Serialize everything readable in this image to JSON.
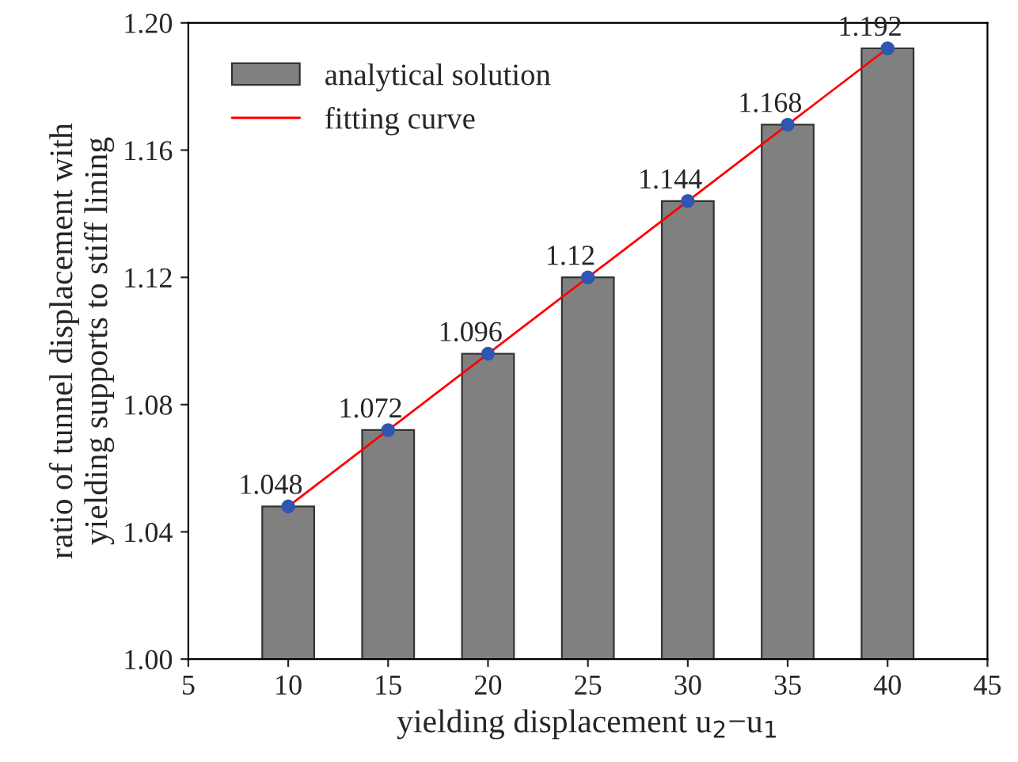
{
  "chart_data": {
    "type": "bar",
    "xlabel": "yielding displacement u$_{2}$−u$_{1}$",
    "ylabel": "ratio of tunnel displacement with\nyielding supports to stiff lining",
    "x": [
      10,
      15,
      20,
      25,
      30,
      35,
      40
    ],
    "series": [
      {
        "name": "analytical solution",
        "color": "#808080",
        "values": [
          1.048,
          1.072,
          1.096,
          1.12,
          1.144,
          1.168,
          1.192
        ],
        "value_labels": [
          "1.048",
          "1.072",
          "1.096",
          "1.12",
          "1.144",
          "1.168",
          "1.192"
        ]
      },
      {
        "name": "fitting curve",
        "type": "line",
        "color": "#ff0000",
        "marker": "none",
        "values": [
          1.048,
          1.072,
          1.096,
          1.12,
          1.144,
          1.168,
          1.192
        ]
      },
      {
        "type": "scatter",
        "color": "#2f56b0",
        "marker": "circle",
        "values": [
          1.048,
          1.072,
          1.096,
          1.12,
          1.144,
          1.168,
          1.192
        ]
      }
    ],
    "xlim": [
      5,
      45
    ],
    "xticks": [
      5,
      10,
      15,
      20,
      25,
      30,
      35,
      40,
      45
    ],
    "ylim": [
      1.0,
      1.2
    ],
    "yticks": [
      {
        "value": 1.0,
        "label": "1.00"
      },
      {
        "value": 1.04,
        "label": "1.04"
      },
      {
        "value": 1.08,
        "label": "1.08"
      },
      {
        "value": 1.12,
        "label": "1.12"
      },
      {
        "value": 1.16,
        "label": "1.16"
      },
      {
        "value": 1.2,
        "label": "1.20"
      }
    ],
    "grid": false,
    "legend": "top left"
  }
}
